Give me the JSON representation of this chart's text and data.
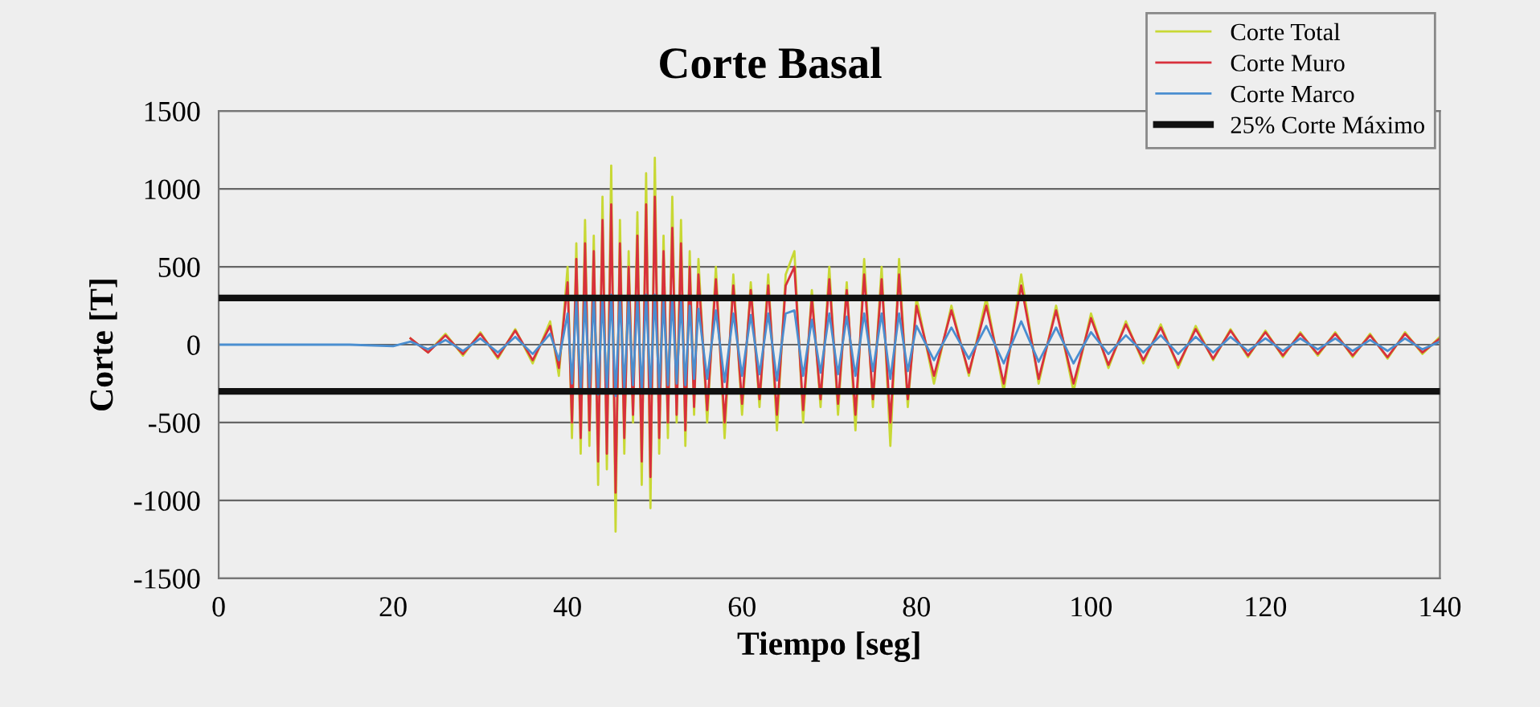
{
  "chart_data": {
    "type": "line",
    "title": "Corte Basal",
    "xlabel": "Tiempo [seg]",
    "ylabel": "Corte [T]",
    "x": [
      0,
      5,
      10,
      15,
      20,
      22,
      24,
      26,
      28,
      30,
      32,
      34,
      36,
      38,
      39,
      40,
      40.5,
      41,
      41.5,
      42,
      42.5,
      43,
      43.5,
      44,
      44.5,
      45,
      45.5,
      46,
      46.5,
      47,
      47.5,
      48,
      48.5,
      49,
      49.5,
      50,
      50.5,
      51,
      51.5,
      52,
      52.5,
      53,
      53.5,
      54,
      54.5,
      55,
      56,
      57,
      58,
      59,
      60,
      61,
      62,
      63,
      64,
      65,
      66,
      67,
      68,
      69,
      70,
      71,
      72,
      73,
      74,
      75,
      76,
      77,
      78,
      79,
      80,
      82,
      84,
      86,
      88,
      90,
      92,
      94,
      96,
      98,
      100,
      102,
      104,
      106,
      108,
      110,
      112,
      114,
      116,
      118,
      120,
      122,
      124,
      126,
      128,
      130,
      132,
      134,
      136,
      138,
      140
    ],
    "series": [
      {
        "name": "Corte Total",
        "color": "#c8d834",
        "values": [
          null,
          null,
          null,
          null,
          null,
          40,
          -50,
          70,
          -70,
          80,
          -90,
          100,
          -120,
          150,
          -200,
          500,
          -600,
          650,
          -700,
          800,
          -650,
          700,
          -900,
          950,
          -800,
          1150,
          -1200,
          800,
          -700,
          600,
          -500,
          850,
          -900,
          1100,
          -1050,
          1200,
          -700,
          700,
          -600,
          950,
          -500,
          800,
          -650,
          600,
          -450,
          550,
          -500,
          500,
          -600,
          450,
          -450,
          400,
          -400,
          450,
          -550,
          450,
          600,
          -500,
          350,
          -400,
          500,
          -450,
          400,
          -550,
          550,
          -400,
          500,
          -650,
          550,
          -400,
          300,
          -250,
          250,
          -200,
          300,
          -300,
          450,
          -250,
          250,
          -300,
          200,
          -150,
          150,
          -120,
          130,
          -150,
          120,
          -100,
          100,
          -80,
          90,
          -80,
          80,
          -70,
          80,
          -80,
          70,
          -90,
          80,
          -60,
          50
        ]
      },
      {
        "name": "Corte Muro",
        "color": "#d8303c",
        "values": [
          null,
          null,
          null,
          null,
          null,
          40,
          -50,
          60,
          -60,
          70,
          -80,
          90,
          -100,
          120,
          -150,
          400,
          -500,
          550,
          -600,
          650,
          -550,
          600,
          -750,
          800,
          -700,
          900,
          -950,
          650,
          -600,
          500,
          -450,
          700,
          -750,
          900,
          -850,
          950,
          -600,
          600,
          -500,
          750,
          -450,
          650,
          -550,
          500,
          -400,
          450,
          -420,
          420,
          -500,
          380,
          -380,
          350,
          -350,
          380,
          -450,
          380,
          500,
          -420,
          300,
          -350,
          420,
          -380,
          350,
          -450,
          450,
          -350,
          420,
          -500,
          450,
          -350,
          250,
          -200,
          220,
          -180,
          250,
          -250,
          380,
          -220,
          220,
          -250,
          170,
          -130,
          130,
          -100,
          110,
          -130,
          100,
          -90,
          90,
          -70,
          80,
          -70,
          70,
          -60,
          70,
          -70,
          60,
          -80,
          70,
          -50,
          40
        ]
      },
      {
        "name": "Corte Marco",
        "color": "#4a8ed0",
        "values": [
          0,
          0,
          0,
          0,
          -10,
          20,
          -30,
          30,
          -40,
          40,
          -50,
          50,
          -60,
          70,
          -100,
          200,
          -250,
          280,
          -300,
          300,
          -280,
          300,
          -320,
          300,
          -300,
          320,
          -330,
          300,
          -280,
          280,
          -260,
          300,
          -300,
          320,
          -300,
          320,
          -280,
          280,
          -260,
          300,
          -250,
          280,
          -260,
          250,
          -220,
          230,
          -220,
          220,
          -240,
          200,
          -200,
          190,
          -190,
          200,
          -230,
          200,
          220,
          -200,
          160,
          -180,
          200,
          -190,
          180,
          -200,
          200,
          -170,
          200,
          -220,
          200,
          -170,
          120,
          -100,
          110,
          -90,
          120,
          -120,
          150,
          -110,
          110,
          -120,
          80,
          -60,
          60,
          -50,
          60,
          -60,
          50,
          -50,
          50,
          -40,
          40,
          -40,
          40,
          -30,
          40,
          -40,
          30,
          -40,
          40,
          -30,
          20
        ]
      }
    ],
    "ref_lines": [
      {
        "axis": "y",
        "value": 300,
        "label": "25% Corte Máximo",
        "color": "#111111"
      },
      {
        "axis": "y",
        "value": -300,
        "color": "#111111"
      }
    ],
    "xlim": [
      0,
      140
    ],
    "xticks": [
      0,
      20,
      40,
      60,
      80,
      100,
      120,
      140
    ],
    "ylim": [
      -1500,
      1500
    ],
    "yticks": [
      -1500,
      -1000,
      -500,
      0,
      500,
      1000,
      1500
    ],
    "grid": "y",
    "legend": "top right",
    "marker": "none",
    "line_style": "solid"
  }
}
